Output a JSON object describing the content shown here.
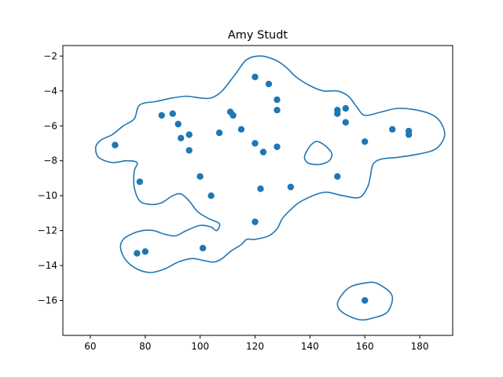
{
  "chart_data": {
    "type": "scatter",
    "title": "Amy Studt",
    "xlabel": "",
    "ylabel": "",
    "xlim": [
      50,
      192
    ],
    "ylim": [
      -18,
      -1.4
    ],
    "xticks": [
      60,
      80,
      100,
      120,
      140,
      160,
      180
    ],
    "yticks": [
      -2,
      -4,
      -6,
      -8,
      -10,
      -12,
      -14,
      -16
    ],
    "grid": false,
    "color": "#1f77b4",
    "points": [
      {
        "x": 69,
        "y": -7.1
      },
      {
        "x": 77,
        "y": -13.3
      },
      {
        "x": 78,
        "y": -9.2
      },
      {
        "x": 80,
        "y": -13.2
      },
      {
        "x": 86,
        "y": -5.4
      },
      {
        "x": 90,
        "y": -5.3
      },
      {
        "x": 92,
        "y": -5.9
      },
      {
        "x": 93,
        "y": -6.7
      },
      {
        "x": 96,
        "y": -6.5
      },
      {
        "x": 96,
        "y": -7.4
      },
      {
        "x": 100,
        "y": -8.9
      },
      {
        "x": 101,
        "y": -13.0
      },
      {
        "x": 104,
        "y": -10.0
      },
      {
        "x": 107,
        "y": -6.4
      },
      {
        "x": 111,
        "y": -5.2
      },
      {
        "x": 112,
        "y": -5.4
      },
      {
        "x": 115,
        "y": -6.2
      },
      {
        "x": 120,
        "y": -3.2
      },
      {
        "x": 120,
        "y": -7.0
      },
      {
        "x": 120,
        "y": -11.5
      },
      {
        "x": 122,
        "y": -9.6
      },
      {
        "x": 123,
        "y": -7.5
      },
      {
        "x": 125,
        "y": -3.6
      },
      {
        "x": 128,
        "y": -4.5
      },
      {
        "x": 128,
        "y": -5.1
      },
      {
        "x": 128,
        "y": -7.2
      },
      {
        "x": 133,
        "y": -9.5
      },
      {
        "x": 150,
        "y": -5.1
      },
      {
        "x": 150,
        "y": -5.3
      },
      {
        "x": 150,
        "y": -8.9
      },
      {
        "x": 153,
        "y": -5.0
      },
      {
        "x": 153,
        "y": -5.8
      },
      {
        "x": 160,
        "y": -6.9
      },
      {
        "x": 160,
        "y": -16.0
      },
      {
        "x": 170,
        "y": -6.2
      },
      {
        "x": 176,
        "y": -6.3
      },
      {
        "x": 176,
        "y": -6.5
      }
    ],
    "contours": [
      {
        "name": "main",
        "points": [
          [
            68,
            -6.5
          ],
          [
            72,
            -6.0
          ],
          [
            76,
            -5.6
          ],
          [
            78,
            -4.8
          ],
          [
            84,
            -4.6
          ],
          [
            90,
            -4.4
          ],
          [
            95,
            -4.3
          ],
          [
            100,
            -4.4
          ],
          [
            104,
            -4.4
          ],
          [
            108,
            -4.0
          ],
          [
            113,
            -3.0
          ],
          [
            117,
            -2.2
          ],
          [
            122,
            -2.0
          ],
          [
            127,
            -2.2
          ],
          [
            131,
            -2.6
          ],
          [
            135,
            -3.2
          ],
          [
            140,
            -3.7
          ],
          [
            145,
            -4.0
          ],
          [
            150,
            -4.0
          ],
          [
            154,
            -4.3
          ],
          [
            157,
            -4.9
          ],
          [
            160,
            -5.4
          ],
          [
            166,
            -5.2
          ],
          [
            172,
            -5.0
          ],
          [
            179,
            -5.1
          ],
          [
            185,
            -5.4
          ],
          [
            188,
            -5.9
          ],
          [
            189,
            -6.6
          ],
          [
            186,
            -7.3
          ],
          [
            180,
            -7.6
          ],
          [
            172,
            -7.8
          ],
          [
            166,
            -7.9
          ],
          [
            163,
            -8.2
          ],
          [
            162,
            -8.9
          ],
          [
            161,
            -9.5
          ],
          [
            158,
            -10.1
          ],
          [
            152,
            -10.0
          ],
          [
            146,
            -9.8
          ],
          [
            141,
            -10.0
          ],
          [
            136,
            -10.4
          ],
          [
            133,
            -10.8
          ],
          [
            130,
            -11.3
          ],
          [
            128,
            -11.9
          ],
          [
            125,
            -12.3
          ],
          [
            120,
            -12.5
          ],
          [
            117,
            -12.5
          ],
          [
            115,
            -12.8
          ],
          [
            111,
            -13.2
          ],
          [
            108,
            -13.6
          ],
          [
            105,
            -13.8
          ],
          [
            101,
            -13.7
          ],
          [
            97,
            -13.6
          ],
          [
            92,
            -13.8
          ],
          [
            87,
            -14.2
          ],
          [
            82,
            -14.4
          ],
          [
            77,
            -14.2
          ],
          [
            73,
            -13.7
          ],
          [
            71,
            -13.0
          ],
          [
            72,
            -12.5
          ],
          [
            75,
            -12.2
          ],
          [
            79,
            -12.0
          ],
          [
            83,
            -12.0
          ],
          [
            87,
            -12.2
          ],
          [
            91,
            -12.3
          ],
          [
            95,
            -12.0
          ],
          [
            100,
            -11.7
          ],
          [
            104,
            -11.8
          ],
          [
            106,
            -12.0
          ],
          [
            107,
            -11.6
          ],
          [
            103,
            -11.3
          ],
          [
            99,
            -10.9
          ],
          [
            96,
            -10.3
          ],
          [
            93,
            -9.9
          ],
          [
            90,
            -10.0
          ],
          [
            86,
            -10.4
          ],
          [
            82,
            -10.5
          ],
          [
            78,
            -10.3
          ],
          [
            76,
            -9.5
          ],
          [
            76,
            -8.6
          ],
          [
            77,
            -8.1
          ],
          [
            73,
            -8.0
          ],
          [
            68,
            -8.1
          ],
          [
            63,
            -7.8
          ],
          [
            62,
            -7.2
          ],
          [
            64,
            -6.8
          ],
          [
            68,
            -6.5
          ]
        ]
      },
      {
        "name": "hole",
        "points": [
          [
            141,
            -7.0
          ],
          [
            143,
            -6.9
          ],
          [
            146,
            -7.2
          ],
          [
            148,
            -7.6
          ],
          [
            147,
            -8.0
          ],
          [
            144,
            -8.2
          ],
          [
            141,
            -8.2
          ],
          [
            139,
            -8.1
          ],
          [
            138,
            -7.8
          ],
          [
            139,
            -7.4
          ],
          [
            141,
            -7.0
          ]
        ]
      },
      {
        "name": "island",
        "points": [
          [
            160,
            -15.0
          ],
          [
            164,
            -15.0
          ],
          [
            169,
            -15.5
          ],
          [
            170,
            -16.0
          ],
          [
            168,
            -16.7
          ],
          [
            163,
            -17.0
          ],
          [
            158,
            -17.1
          ],
          [
            152,
            -16.7
          ],
          [
            150,
            -16.2
          ],
          [
            152,
            -15.6
          ],
          [
            155,
            -15.2
          ],
          [
            160,
            -15.0
          ]
        ]
      }
    ]
  }
}
